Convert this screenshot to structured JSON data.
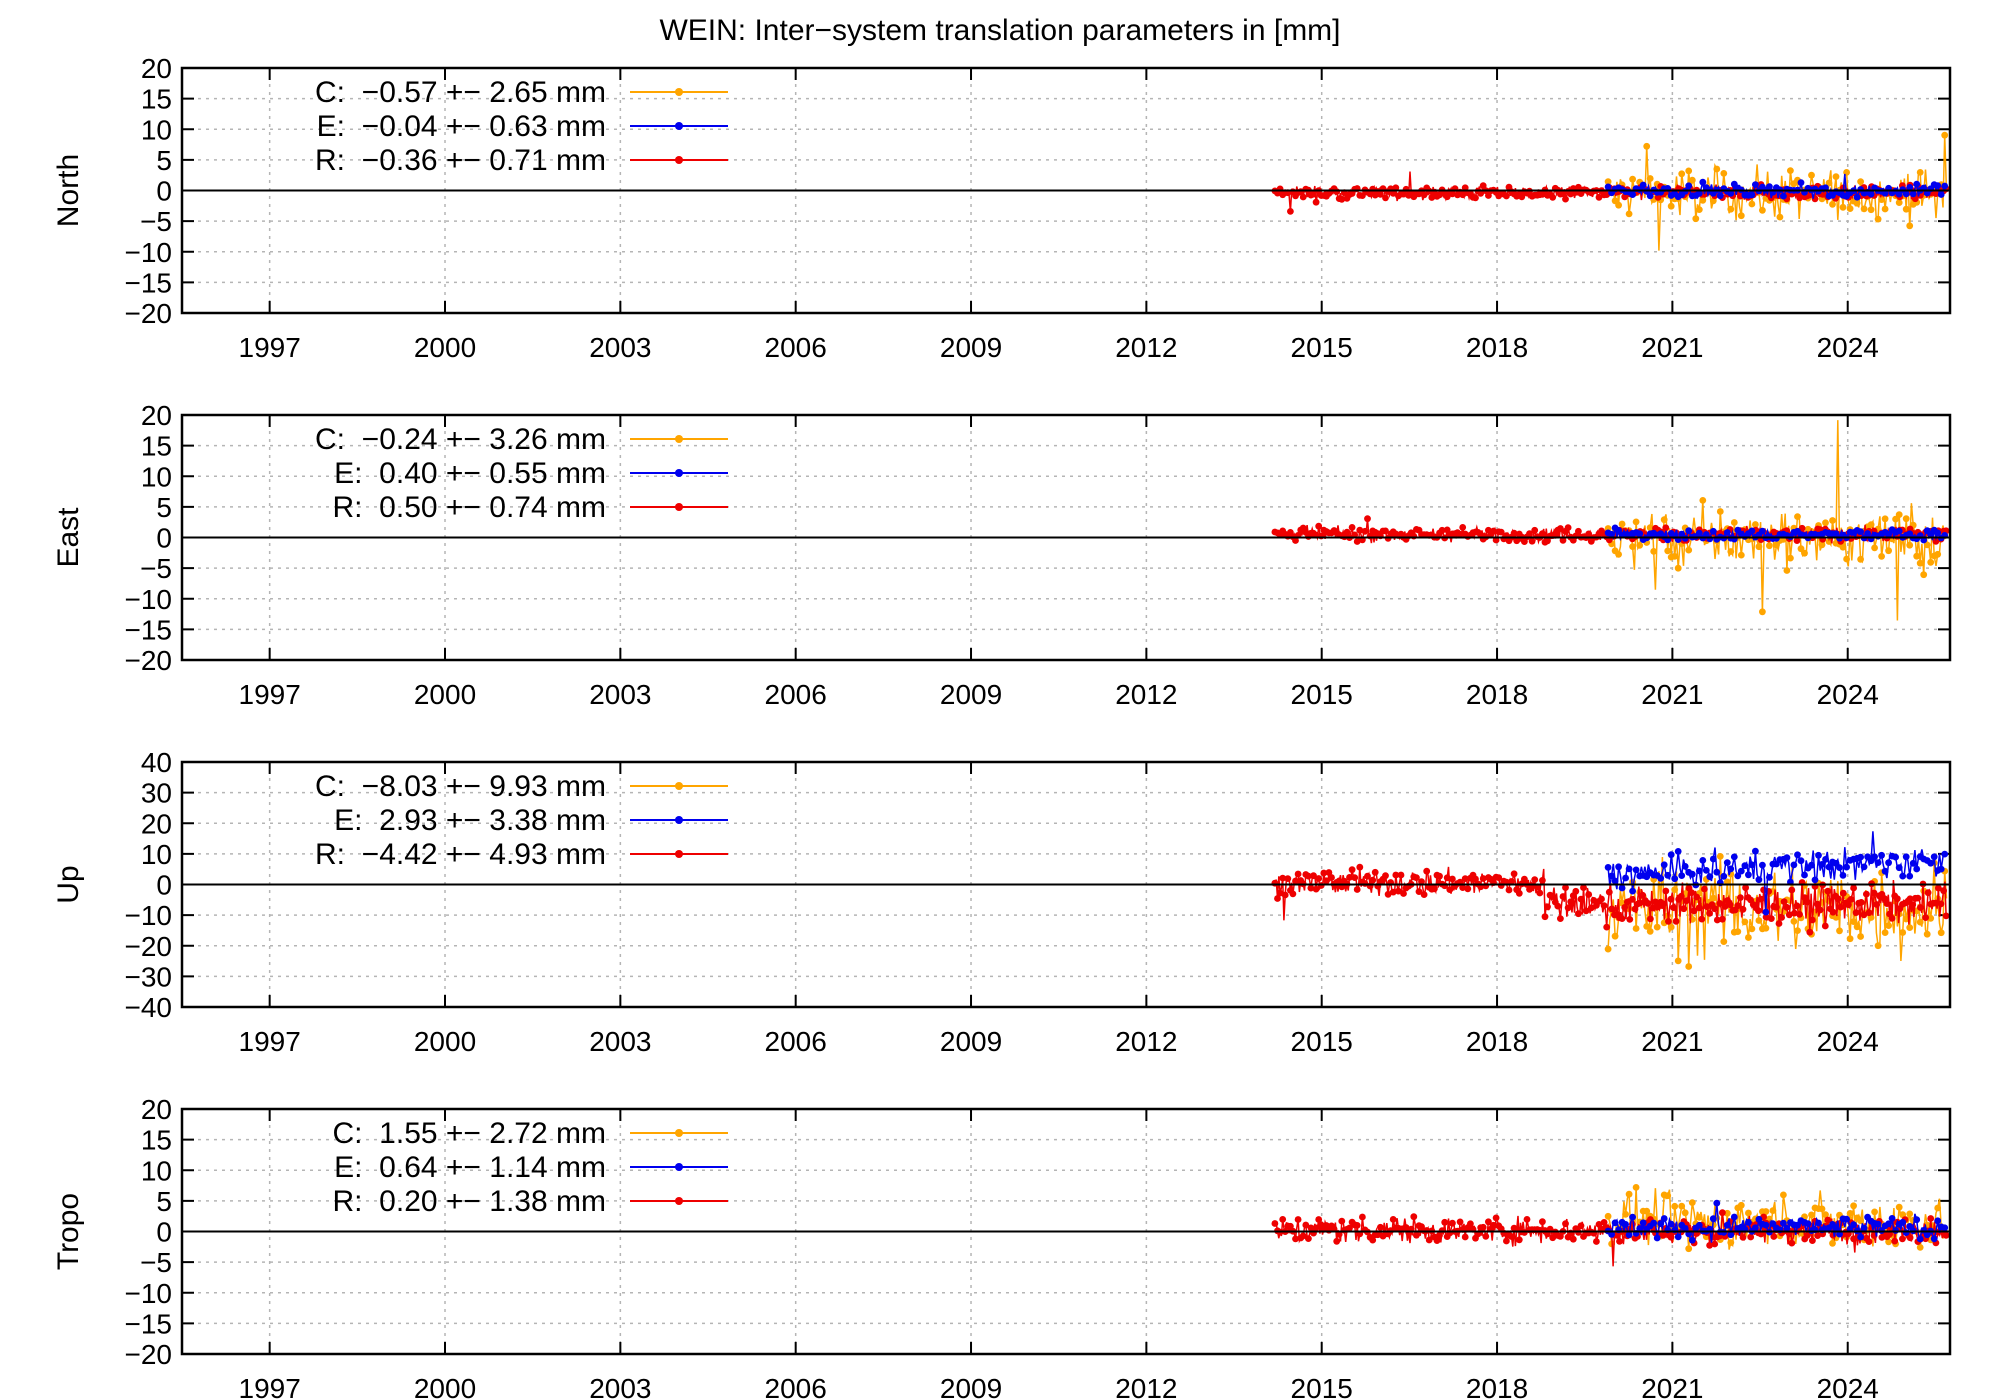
{
  "title": "WEIN: Inter−system translation parameters in [mm]",
  "colors": {
    "C": "#ffa500",
    "E": "#0000ee",
    "R": "#ee0000"
  },
  "chart_data": [
    {
      "type": "scatter",
      "ylabel": "North",
      "xlim": [
        1995.5,
        2025.75
      ],
      "ylim": [
        -20,
        20
      ],
      "ytick_step": 5,
      "xticks": [
        "1997",
        "2000",
        "2003",
        "2006",
        "2009",
        "2012",
        "2015",
        "2018",
        "2021",
        "2024"
      ],
      "grid": true,
      "legend_position": "top-left",
      "series": [
        {
          "name": "C",
          "label": "C:  −0.57 +− 2.65 mm",
          "mean": -0.57,
          "sd": 2.65,
          "x_start": 2019.9,
          "x_end": 2025.7
        },
        {
          "name": "E",
          "label": "E:  −0.04 +− 0.63 mm",
          "mean": -0.04,
          "sd": 0.63,
          "x_start": 2019.9,
          "x_end": 2025.7
        },
        {
          "name": "R",
          "label": "R:  −0.36 +− 0.71 mm",
          "mean": -0.36,
          "sd": 0.71,
          "x_start": 2014.2,
          "x_end": 2025.7
        }
      ]
    },
    {
      "type": "scatter",
      "ylabel": "East",
      "xlim": [
        1995.5,
        2025.75
      ],
      "ylim": [
        -20,
        20
      ],
      "ytick_step": 5,
      "xticks": [
        "1997",
        "2000",
        "2003",
        "2006",
        "2009",
        "2012",
        "2015",
        "2018",
        "2021",
        "2024"
      ],
      "grid": true,
      "legend_position": "top-left",
      "series": [
        {
          "name": "C",
          "label": "C:  −0.24 +− 3.26 mm",
          "mean": -0.24,
          "sd": 3.26,
          "x_start": 2019.9,
          "x_end": 2025.7
        },
        {
          "name": "E",
          "label": "E:  0.40 +− 0.55 mm",
          "mean": 0.4,
          "sd": 0.55,
          "x_start": 2019.9,
          "x_end": 2025.7
        },
        {
          "name": "R",
          "label": "R:  0.50 +− 0.74 mm",
          "mean": 0.5,
          "sd": 0.74,
          "x_start": 2014.2,
          "x_end": 2025.7
        }
      ]
    },
    {
      "type": "scatter",
      "ylabel": "Up",
      "xlim": [
        1995.5,
        2025.75
      ],
      "ylim": [
        -40,
        40
      ],
      "ytick_step": 10,
      "xticks": [
        "1997",
        "2000",
        "2003",
        "2006",
        "2009",
        "2012",
        "2015",
        "2018",
        "2021",
        "2024"
      ],
      "grid": true,
      "legend_position": "top-left",
      "series": [
        {
          "name": "C",
          "label": "C:  −8.03 +− 9.93 mm",
          "mean": -8.03,
          "sd": 9.93,
          "x_start": 2019.9,
          "x_end": 2025.7
        },
        {
          "name": "E",
          "label": "E:  2.93 +− 3.38 mm",
          "mean": 2.93,
          "sd": 3.38,
          "x_start": 2019.9,
          "x_end": 2025.7
        },
        {
          "name": "R",
          "label": "R:  −4.42 +− 4.93 mm",
          "mean": -4.42,
          "sd": 4.93,
          "x_start": 2014.2,
          "x_end": 2025.7
        }
      ]
    },
    {
      "type": "scatter",
      "ylabel": "Tropo",
      "xlim": [
        1995.5,
        2025.75
      ],
      "ylim": [
        -20,
        20
      ],
      "ytick_step": 5,
      "xticks": [
        "1997",
        "2000",
        "2003",
        "2006",
        "2009",
        "2012",
        "2015",
        "2018",
        "2021",
        "2024"
      ],
      "grid": true,
      "legend_position": "top-left",
      "series": [
        {
          "name": "C",
          "label": "C:  1.55 +− 2.72 mm",
          "mean": 1.55,
          "sd": 2.72,
          "x_start": 2019.9,
          "x_end": 2025.7
        },
        {
          "name": "E",
          "label": "E:  0.64 +− 1.14 mm",
          "mean": 0.64,
          "sd": 1.14,
          "x_start": 2019.9,
          "x_end": 2025.7
        },
        {
          "name": "R",
          "label": "R:  0.20 +− 1.38 mm",
          "mean": 0.2,
          "sd": 1.38,
          "x_start": 2014.2,
          "x_end": 2025.7
        }
      ]
    }
  ]
}
